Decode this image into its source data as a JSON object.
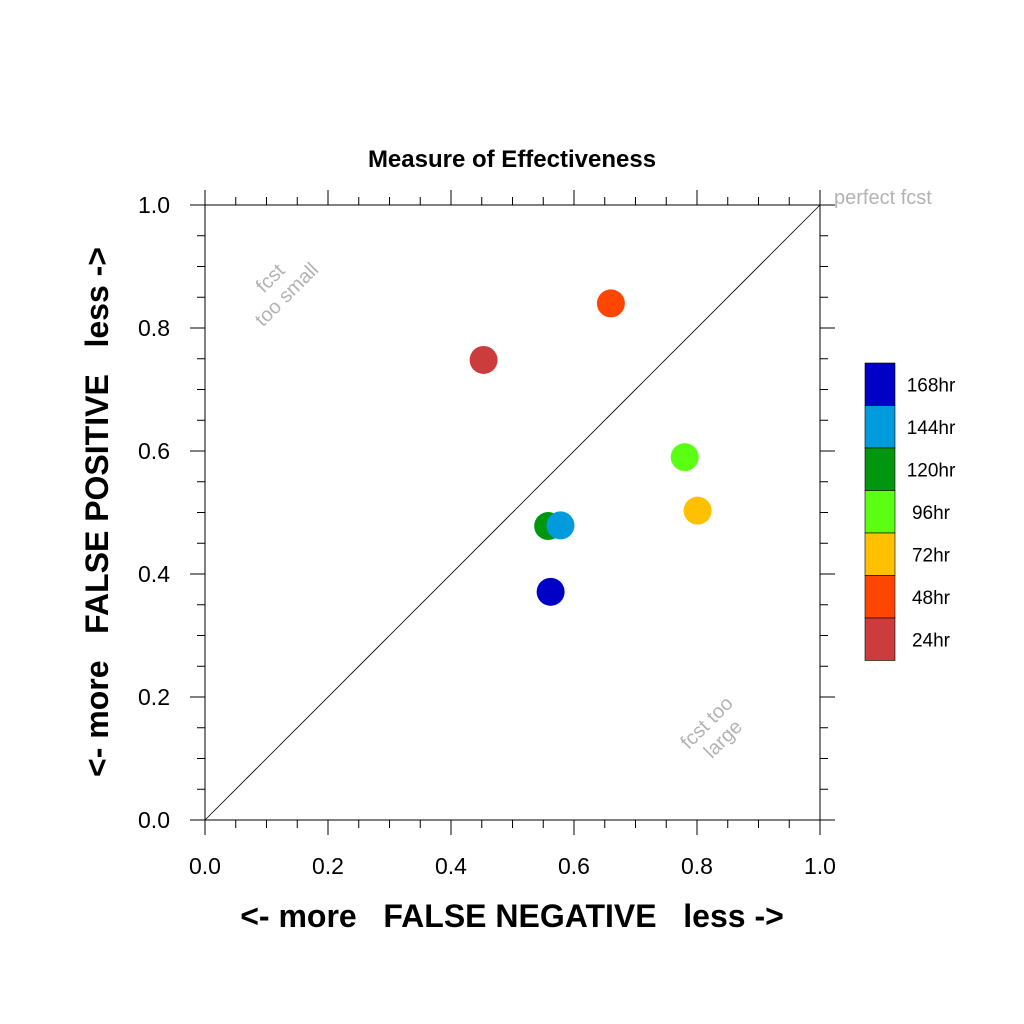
{
  "chart_data": {
    "type": "scatter",
    "title": "Measure of Effectiveness",
    "xlabel": "<- more   FALSE NEGATIVE   less ->",
    "ylabel": "<- more   FALSE POSITIVE   less ->",
    "xlim": [
      0.0,
      1.0
    ],
    "ylim": [
      0.0,
      1.0
    ],
    "x_ticks": [
      "0.0",
      "0.2",
      "0.4",
      "0.6",
      "0.8",
      "1.0"
    ],
    "y_ticks": [
      "0.0",
      "0.2",
      "0.4",
      "0.6",
      "0.8",
      "1.0"
    ],
    "grid": false,
    "legend_position": "right",
    "annotations": {
      "perfect": "perfect fcst",
      "too_small_1": "fcst",
      "too_small_2": "too small",
      "too_large_1": "fcst too",
      "too_large_2": "large"
    },
    "series": [
      {
        "name": "24hr",
        "color": "#cc3c3c",
        "x": 0.453,
        "y": 0.748
      },
      {
        "name": "48hr",
        "color": "#ff4600",
        "x": 0.66,
        "y": 0.84
      },
      {
        "name": "72hr",
        "color": "#ffc000",
        "x": 0.801,
        "y": 0.503
      },
      {
        "name": "96hr",
        "color": "#5bff13",
        "x": 0.78,
        "y": 0.59
      },
      {
        "name": "120hr",
        "color": "#00960e",
        "x": 0.558,
        "y": 0.478
      },
      {
        "name": "144hr",
        "color": "#009bdc",
        "x": 0.578,
        "y": 0.479
      },
      {
        "name": "168hr",
        "color": "#0000c6",
        "x": 0.562,
        "y": 0.371
      }
    ],
    "legend_order": [
      "168hr",
      "144hr",
      "120hr",
      "96hr",
      "72hr",
      "48hr",
      "24hr"
    ]
  }
}
